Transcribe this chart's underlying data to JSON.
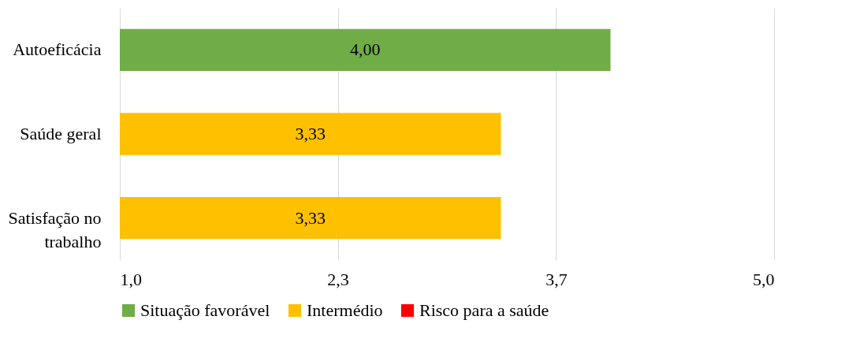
{
  "chart_data": {
    "type": "bar",
    "orientation": "horizontal",
    "categories": [
      "Autoeficácia",
      "Saúde geral",
      "Satisfação no trabalho"
    ],
    "series": [
      {
        "name": "Situação favorável",
        "color": "#70ad47",
        "values": [
          4.0,
          null,
          null
        ],
        "value_labels": [
          "4,00",
          null,
          null
        ]
      },
      {
        "name": "Intermédio",
        "color": "#ffc000",
        "values": [
          null,
          3.33,
          3.33
        ],
        "value_labels": [
          null,
          "3,33",
          "3,33"
        ]
      },
      {
        "name": "Risco para a saúde",
        "color": "#ff0000",
        "values": [
          null,
          null,
          null
        ],
        "value_labels": [
          null,
          null,
          null
        ]
      }
    ],
    "xlim": [
      1.0,
      5.0
    ],
    "xticks": [
      {
        "value": 1.0,
        "label": "1,0"
      },
      {
        "value": 2.333,
        "label": "2,3"
      },
      {
        "value": 3.667,
        "label": "3,7"
      },
      {
        "value": 5.0,
        "label": "5,0"
      }
    ],
    "grid": "x",
    "legend": "bottom"
  }
}
